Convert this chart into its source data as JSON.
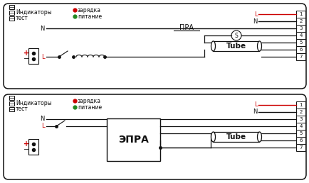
{
  "bg_color": "#ffffff",
  "red_color": "#cc0000",
  "green_color": "#228822",
  "black_color": "#111111",
  "panel1": {
    "label_indicators": "Индикаторы",
    "label_test": "тест",
    "label_charge": "зарядка",
    "label_power": "питание",
    "label_N": "N",
    "label_L": "L",
    "label_PRA": "ПРА",
    "label_Tube": "Tube",
    "label_S": "S",
    "terminals": [
      "1",
      "2",
      "3",
      "4",
      "5",
      "6",
      "7"
    ]
  },
  "panel2": {
    "label_indicators": "Индикаторы",
    "label_test": "тест",
    "label_charge": "зарядка",
    "label_power": "питание",
    "label_N": "N",
    "label_L": "L",
    "label_EPRA": "ЭПРА",
    "label_Tube": "Tube",
    "terminals": [
      "1",
      "2",
      "3",
      "4",
      "5",
      "6",
      "7"
    ]
  }
}
